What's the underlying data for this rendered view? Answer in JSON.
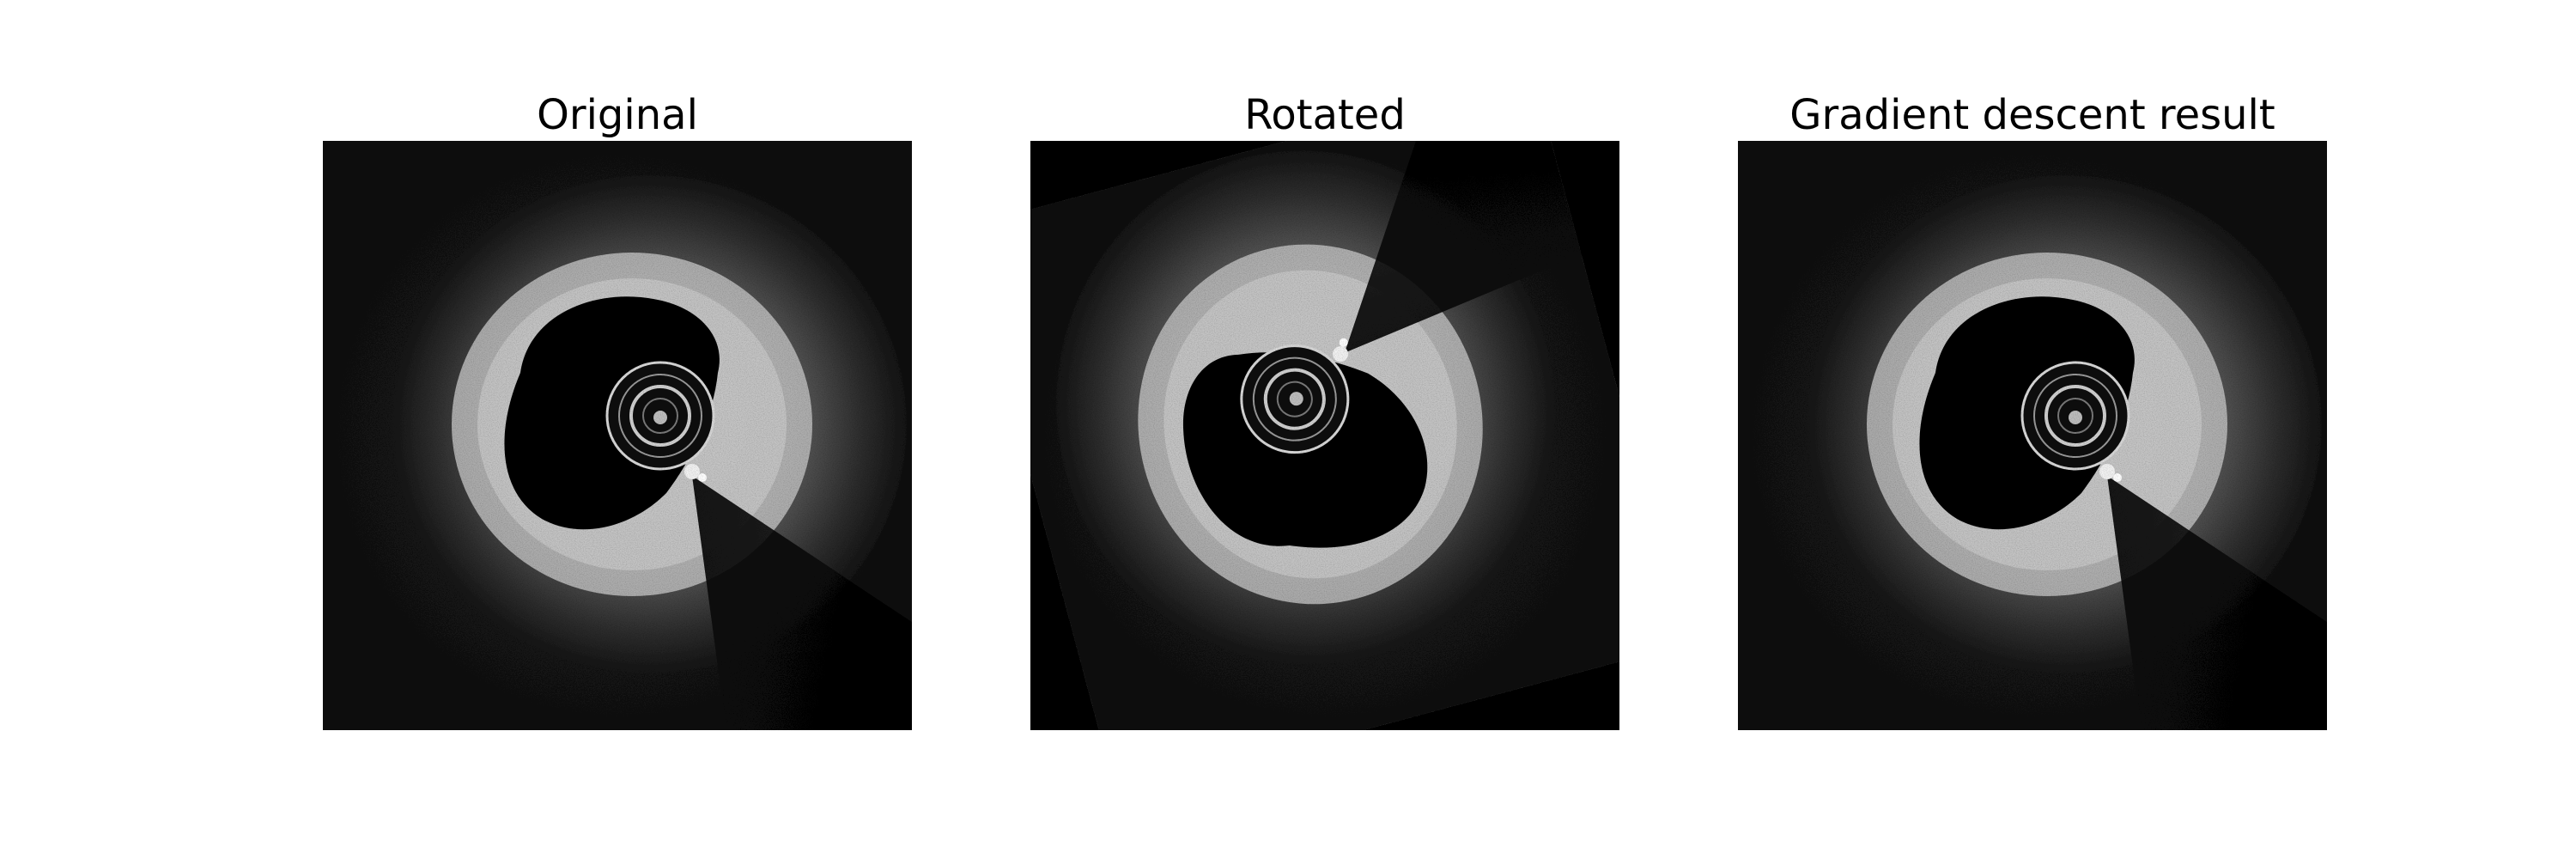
{
  "figure": {
    "panels": [
      {
        "title": "Original",
        "catheter_angle_deg": 0
      },
      {
        "title": "Rotated",
        "catheter_angle_deg": -105
      },
      {
        "title": "Gradient descent result",
        "catheter_angle_deg": 0
      }
    ],
    "colors": {
      "background": "#ffffff",
      "image_background": "#0c0c0c",
      "tissue": "#b8b8b8",
      "lumen": "#000000"
    }
  }
}
